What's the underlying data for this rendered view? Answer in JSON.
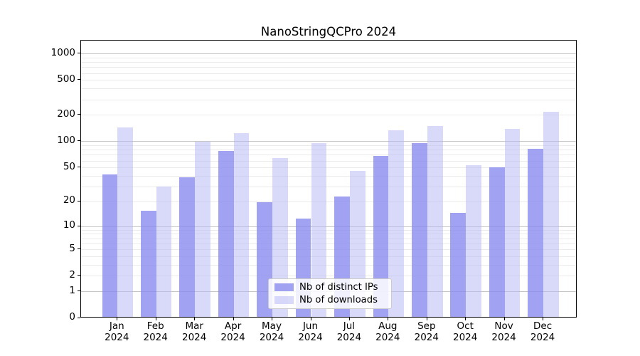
{
  "chart_data": {
    "type": "bar",
    "title": "NanoStringQCPro 2024",
    "categories": [
      "Jan",
      "Feb",
      "Mar",
      "Apr",
      "May",
      "Jun",
      "Jul",
      "Aug",
      "Sep",
      "Oct",
      "Nov",
      "Dec"
    ],
    "category_year": "2024",
    "series": [
      {
        "name": "Nb of distinct IPs",
        "color": "rgba(136,136,238,0.78)",
        "values": [
          40,
          15,
          37,
          76,
          19,
          12,
          22,
          66,
          92,
          14,
          49,
          79
        ]
      },
      {
        "name": "Nb of downloads",
        "color": "rgba(180,180,245,0.5)",
        "values": [
          140,
          29,
          97,
          120,
          62,
          93,
          44,
          130,
          144,
          52,
          136,
          210
        ]
      }
    ],
    "ylabel": "",
    "xlabel": "",
    "yticks": [
      0,
      1,
      2,
      5,
      10,
      20,
      50,
      100,
      200,
      500,
      1000
    ],
    "major_grid_values": [
      1,
      10,
      100,
      1000
    ],
    "minor_grid_values": [
      2,
      3,
      4,
      5,
      6,
      7,
      8,
      9,
      20,
      30,
      40,
      50,
      60,
      70,
      80,
      90,
      200,
      300,
      400,
      500,
      600,
      700,
      800,
      900
    ],
    "scale": "log10(value+1)",
    "ylim": [
      0,
      1400
    ],
    "grid": true,
    "legend_position": "lower center"
  },
  "colors": {
    "bar_distinct_ips": "rgba(136,136,238,0.78)",
    "bar_downloads": "rgba(180,180,245,0.5)",
    "major_grid": "#c6c6c6",
    "minor_grid": "#ebebeb",
    "axis": "#000000",
    "legend_border": "#cccccc",
    "background": "#ffffff"
  }
}
